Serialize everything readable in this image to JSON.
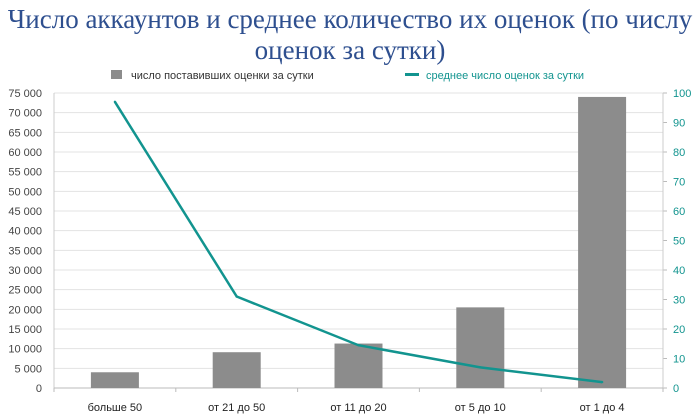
{
  "chart_data": {
    "type": "bar+line",
    "title": "Число аккаунтов и среднее количество их оценок (по числу оценок за сутки)",
    "categories": [
      "больше 50",
      "от 21 до 50",
      "от 11 до 20",
      "от 5 до 10",
      "от 1 до 4"
    ],
    "series": [
      {
        "name": "число поставивших оценки за сутки",
        "type": "bar",
        "axis": "left",
        "color": "#8c8c8c",
        "values": [
          4000,
          9100,
          11300,
          20500,
          74000
        ]
      },
      {
        "name": "среднее число оценок за сутки",
        "type": "line",
        "axis": "right",
        "color": "#12948f",
        "values": [
          97,
          31,
          14.5,
          7,
          2
        ]
      }
    ],
    "y_left": {
      "range": [
        0,
        75000
      ],
      "ticks": [
        0,
        5000,
        10000,
        15000,
        20000,
        25000,
        30000,
        35000,
        40000,
        45000,
        50000,
        55000,
        60000,
        65000,
        70000,
        75000
      ],
      "tick_labels": [
        "0",
        "5 000",
        "10 000",
        "15 000",
        "20 000",
        "25 000",
        "30 000",
        "35 000",
        "40 000",
        "45 000",
        "50 000",
        "55 000",
        "60 000",
        "65 000",
        "70 000",
        "75 000"
      ]
    },
    "y_right": {
      "range": [
        0,
        100
      ],
      "ticks": [
        0,
        10,
        20,
        30,
        40,
        50,
        60,
        70,
        80,
        90,
        100
      ],
      "tick_labels": [
        "0",
        "10",
        "20",
        "30",
        "40",
        "50",
        "60",
        "70",
        "80",
        "90",
        "100"
      ],
      "color": "#12948f"
    },
    "grid": true,
    "legend": "top"
  }
}
